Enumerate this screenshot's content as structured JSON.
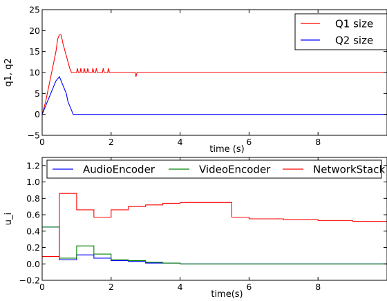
{
  "chart_data": [
    {
      "type": "line",
      "xlabel": "time (s)",
      "ylabel": "q1, q2",
      "xlim": [
        0,
        10
      ],
      "ylim": [
        -5,
        25
      ],
      "xticks": [
        0,
        2,
        4,
        6,
        8
      ],
      "xtick_labels": [
        "0",
        "2",
        "4",
        "6",
        "8"
      ],
      "yticks": [
        -5,
        0,
        5,
        10,
        15,
        20,
        25
      ],
      "ytick_labels": [
        "−5",
        "0",
        "5",
        "10",
        "15",
        "20",
        "25"
      ],
      "legend_position": "top-right",
      "series": [
        {
          "name": "Q1 size",
          "color": "#ff0000",
          "points": [
            [
              0,
              0
            ],
            [
              0.1,
              3
            ],
            [
              0.2,
              7
            ],
            [
              0.3,
              11
            ],
            [
              0.4,
              15
            ],
            [
              0.45,
              18
            ],
            [
              0.5,
              19
            ],
            [
              0.55,
              19
            ],
            [
              0.6,
              17
            ],
            [
              0.7,
              14
            ],
            [
              0.8,
              11
            ],
            [
              0.85,
              10
            ],
            [
              1.0,
              10
            ],
            [
              1.02,
              11
            ],
            [
              1.05,
              10
            ],
            [
              1.1,
              10
            ],
            [
              1.12,
              11
            ],
            [
              1.15,
              10
            ],
            [
              1.2,
              10
            ],
            [
              1.22,
              11
            ],
            [
              1.25,
              10
            ],
            [
              1.3,
              10
            ],
            [
              1.32,
              11
            ],
            [
              1.35,
              10
            ],
            [
              1.45,
              10
            ],
            [
              1.47,
              11
            ],
            [
              1.5,
              10
            ],
            [
              1.55,
              10
            ],
            [
              1.57,
              11
            ],
            [
              1.6,
              10
            ],
            [
              1.75,
              10
            ],
            [
              1.77,
              11
            ],
            [
              1.8,
              10
            ],
            [
              1.9,
              10
            ],
            [
              1.92,
              11
            ],
            [
              1.95,
              10
            ],
            [
              2.7,
              10
            ],
            [
              2.72,
              9
            ],
            [
              2.75,
              10
            ],
            [
              10,
              10
            ]
          ]
        },
        {
          "name": "Q2 size",
          "color": "#0000ff",
          "points": [
            [
              0,
              0
            ],
            [
              0.1,
              2
            ],
            [
              0.2,
              4
            ],
            [
              0.3,
              6
            ],
            [
              0.4,
              8
            ],
            [
              0.5,
              9
            ],
            [
              0.55,
              8
            ],
            [
              0.6,
              7
            ],
            [
              0.7,
              5
            ],
            [
              0.75,
              3
            ],
            [
              0.8,
              2
            ],
            [
              0.85,
              1
            ],
            [
              0.9,
              0
            ],
            [
              10,
              0
            ]
          ]
        }
      ]
    },
    {
      "type": "line",
      "xlabel": "time(s)",
      "ylabel": "u_i",
      "xlim": [
        0,
        10
      ],
      "ylim": [
        -0.2,
        1.3
      ],
      "xticks": [
        0,
        2,
        4,
        6,
        8
      ],
      "xtick_labels": [
        "0",
        "2",
        "4",
        "6",
        "8"
      ],
      "yticks": [
        -0.2,
        0.0,
        0.2,
        0.4,
        0.6,
        0.8,
        1.0,
        1.2
      ],
      "ytick_labels": [
        "−0.2",
        "0.0",
        "0.2",
        "0.4",
        "0.6",
        "0.8",
        "1.0",
        "1.2"
      ],
      "legend_position": "top",
      "series": [
        {
          "name": "AudioEncoder",
          "color": "#0000ff",
          "points": [
            [
              0,
              0.45
            ],
            [
              0.5,
              0.45
            ],
            [
              0.5,
              0.05
            ],
            [
              1.0,
              0.05
            ],
            [
              1.0,
              0.11
            ],
            [
              1.5,
              0.11
            ],
            [
              1.5,
              0.07
            ],
            [
              2.0,
              0.07
            ],
            [
              2.0,
              0.04
            ],
            [
              2.5,
              0.04
            ],
            [
              2.5,
              0.03
            ],
            [
              3.0,
              0.03
            ],
            [
              3.0,
              0.01
            ],
            [
              4.0,
              0.01
            ],
            [
              4.0,
              0.0
            ],
            [
              10,
              0.0
            ]
          ]
        },
        {
          "name": "VideoEncoder",
          "color": "#008000",
          "points": [
            [
              0,
              0.45
            ],
            [
              0.5,
              0.45
            ],
            [
              0.5,
              0.07
            ],
            [
              1.0,
              0.07
            ],
            [
              1.0,
              0.22
            ],
            [
              1.5,
              0.22
            ],
            [
              1.5,
              0.12
            ],
            [
              2.0,
              0.12
            ],
            [
              2.0,
              0.05
            ],
            [
              2.5,
              0.05
            ],
            [
              2.5,
              0.04
            ],
            [
              3.0,
              0.04
            ],
            [
              3.0,
              0.02
            ],
            [
              3.5,
              0.02
            ],
            [
              3.5,
              0.01
            ],
            [
              4.0,
              0.01
            ],
            [
              4.0,
              0.0
            ],
            [
              10,
              0.0
            ]
          ]
        },
        {
          "name": "NetworkStack",
          "color": "#ff0000",
          "points": [
            [
              0,
              0.09
            ],
            [
              0.5,
              0.09
            ],
            [
              0.5,
              0.86
            ],
            [
              1.0,
              0.86
            ],
            [
              1.0,
              0.66
            ],
            [
              1.5,
              0.66
            ],
            [
              1.5,
              0.57
            ],
            [
              2.0,
              0.57
            ],
            [
              2.0,
              0.66
            ],
            [
              2.5,
              0.66
            ],
            [
              2.5,
              0.7
            ],
            [
              3.0,
              0.7
            ],
            [
              3.0,
              0.72
            ],
            [
              3.5,
              0.72
            ],
            [
              3.5,
              0.74
            ],
            [
              4.0,
              0.74
            ],
            [
              4.0,
              0.75
            ],
            [
              5.5,
              0.75
            ],
            [
              5.5,
              0.57
            ],
            [
              6.0,
              0.57
            ],
            [
              6.0,
              0.55
            ],
            [
              7.0,
              0.55
            ],
            [
              7.0,
              0.54
            ],
            [
              8.0,
              0.54
            ],
            [
              8.0,
              0.53
            ],
            [
              9.0,
              0.53
            ],
            [
              9.0,
              0.52
            ],
            [
              10,
              0.52
            ]
          ]
        }
      ]
    }
  ]
}
